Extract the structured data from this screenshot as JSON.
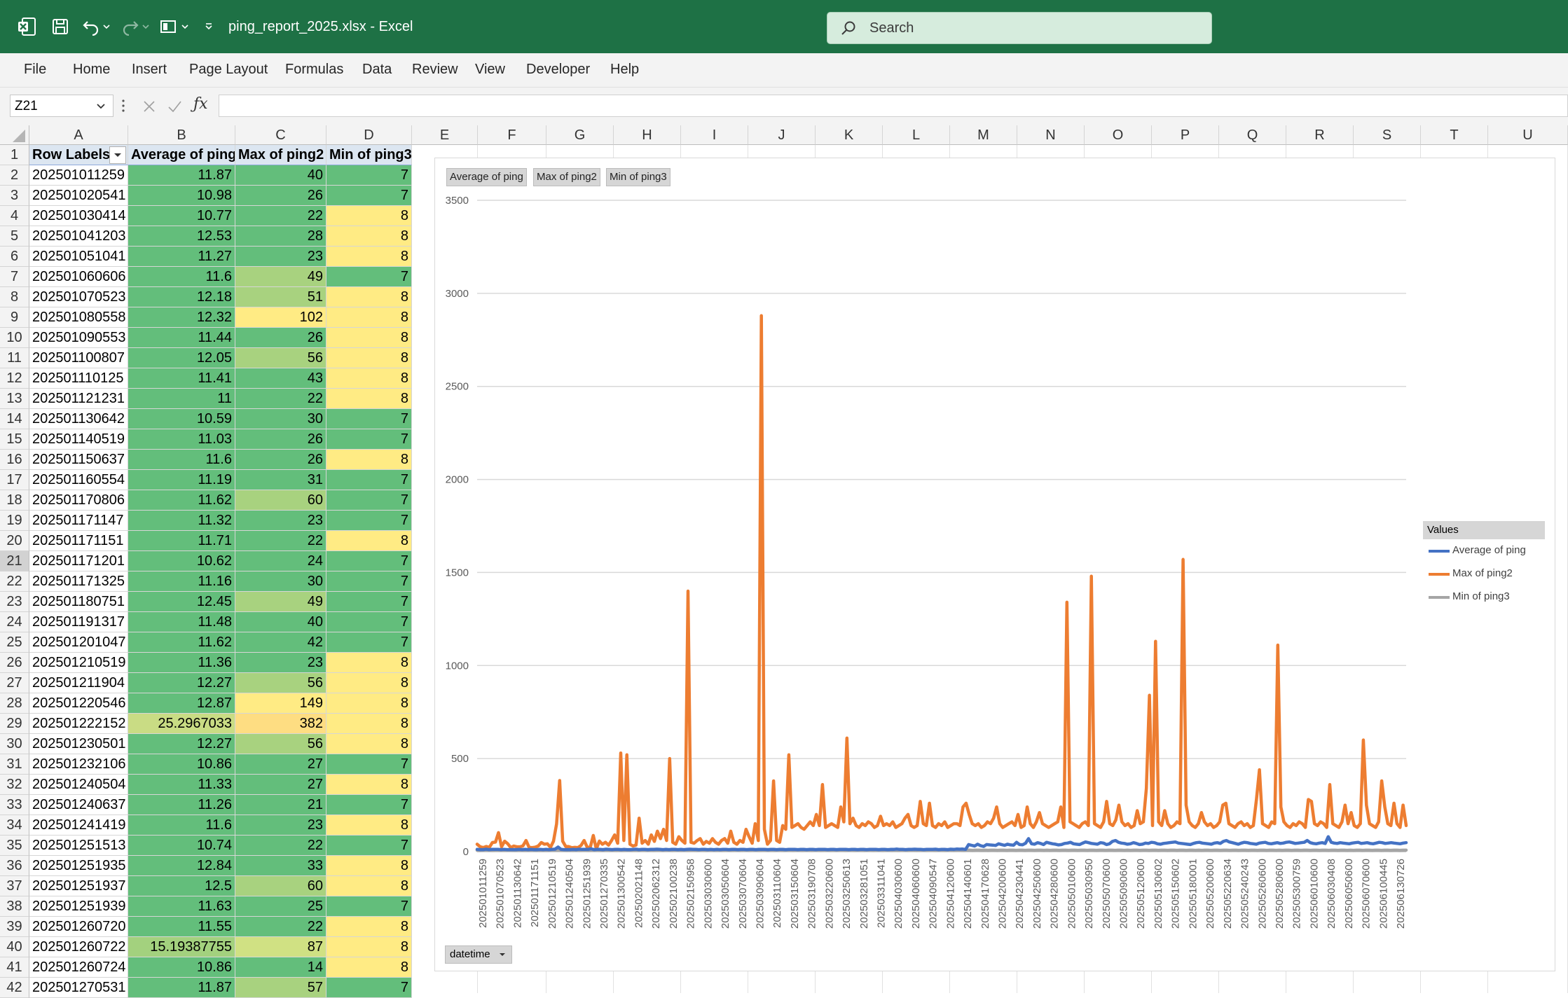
{
  "titlebar": {
    "title": "ping_report_2025.xlsx  -  Excel",
    "search_placeholder": "Search",
    "accent": "#1e7145"
  },
  "menu": [
    "File",
    "Home",
    "Insert",
    "Page Layout",
    "Formulas",
    "Data",
    "Review",
    "View",
    "Developer",
    "Help"
  ],
  "formula_bar": {
    "name_box": "Z21",
    "formula": ""
  },
  "columns": [
    "A",
    "B",
    "C",
    "D",
    "E",
    "F",
    "G",
    "H",
    "I",
    "J",
    "K",
    "L",
    "M",
    "N",
    "O",
    "P",
    "Q",
    "R",
    "S",
    "T",
    "U"
  ],
  "pivot": {
    "headers": [
      "Row Labels",
      "Average of ping",
      "Max of ping2",
      "Min of ping3"
    ],
    "rows": [
      [
        "202501011259",
        "11.87",
        "40",
        "7"
      ],
      [
        "202501020541",
        "10.98",
        "26",
        "7"
      ],
      [
        "202501030414",
        "10.77",
        "22",
        "8"
      ],
      [
        "202501041203",
        "12.53",
        "28",
        "8"
      ],
      [
        "202501051041",
        "11.27",
        "23",
        "8"
      ],
      [
        "202501060606",
        "11.6",
        "49",
        "7"
      ],
      [
        "202501070523",
        "12.18",
        "51",
        "8"
      ],
      [
        "202501080558",
        "12.32",
        "102",
        "8"
      ],
      [
        "202501090553",
        "11.44",
        "26",
        "8"
      ],
      [
        "202501100807",
        "12.05",
        "56",
        "8"
      ],
      [
        "202501110125",
        "11.41",
        "43",
        "8"
      ],
      [
        "202501121231",
        "11",
        "22",
        "8"
      ],
      [
        "202501130642",
        "10.59",
        "30",
        "7"
      ],
      [
        "202501140519",
        "11.03",
        "26",
        "7"
      ],
      [
        "202501150637",
        "11.6",
        "26",
        "8"
      ],
      [
        "202501160554",
        "11.19",
        "31",
        "7"
      ],
      [
        "202501170806",
        "11.62",
        "60",
        "7"
      ],
      [
        "202501171147",
        "11.32",
        "23",
        "7"
      ],
      [
        "202501171151",
        "11.71",
        "22",
        "8"
      ],
      [
        "202501171201",
        "10.62",
        "24",
        "7"
      ],
      [
        "202501171325",
        "11.16",
        "30",
        "7"
      ],
      [
        "202501180751",
        "12.45",
        "49",
        "7"
      ],
      [
        "202501191317",
        "11.48",
        "40",
        "7"
      ],
      [
        "202501201047",
        "11.62",
        "42",
        "7"
      ],
      [
        "202501210519",
        "11.36",
        "23",
        "8"
      ],
      [
        "202501211904",
        "12.27",
        "56",
        "8"
      ],
      [
        "202501220546",
        "12.87",
        "149",
        "8"
      ],
      [
        "202501222152",
        "25.2967033",
        "382",
        "8"
      ],
      [
        "202501230501",
        "12.27",
        "56",
        "8"
      ],
      [
        "202501232106",
        "10.86",
        "27",
        "7"
      ],
      [
        "202501240504",
        "11.33",
        "27",
        "8"
      ],
      [
        "202501240637",
        "11.26",
        "21",
        "7"
      ],
      [
        "202501241419",
        "11.6",
        "23",
        "8"
      ],
      [
        "202501251513",
        "10.74",
        "22",
        "7"
      ],
      [
        "202501251935",
        "12.84",
        "33",
        "8"
      ],
      [
        "202501251937",
        "12.5",
        "60",
        "8"
      ],
      [
        "202501251939",
        "11.63",
        "25",
        "7"
      ],
      [
        "202501260720",
        "11.55",
        "22",
        "8"
      ],
      [
        "202501260722",
        "15.19387755",
        "87",
        "8"
      ],
      [
        "202501260724",
        "10.86",
        "14",
        "8"
      ],
      [
        "202501270531",
        "11.87",
        "57",
        "7"
      ]
    ]
  },
  "colors": {
    "good": "#63be7b",
    "mid": "#c5dc80",
    "warn": "#ffeb84",
    "avg_line": "#4472c4",
    "max_line": "#ed7d31",
    "min_line": "#a5a5a5"
  },
  "chart_data": {
    "type": "line",
    "field_buttons": [
      "Average of ping",
      "Max of ping2",
      "Min of ping3"
    ],
    "axis_field_button": "datetime",
    "legend_title": "Values",
    "legend_position": "right",
    "grid": true,
    "ylim": [
      0,
      3500
    ],
    "y_ticks": [
      0,
      500,
      1000,
      1500,
      2000,
      2500,
      3000,
      3500
    ],
    "x_tick_labels": [
      "202501011259",
      "202501070523",
      "202501130642",
      "202501171151",
      "202501210519",
      "202501240504",
      "202501251939",
      "202501270335",
      "202501300542",
      "202502021148",
      "202502062312",
      "202502100238",
      "202502150958",
      "202503030600",
      "202503050604",
      "202503070604",
      "202503090604",
      "202503110604",
      "202503150604",
      "202503190708",
      "202503220600",
      "202503250613",
      "202503281051",
      "202503311041",
      "202504030600",
      "202504060600",
      "202504090547",
      "202504120600",
      "202504140601",
      "202504170628",
      "202504200600",
      "202504230441",
      "202504250600",
      "202504280600",
      "202505010600",
      "202505030950",
      "202505070600",
      "202505090600",
      "202505120600",
      "202505130602",
      "202505150602",
      "202505180001",
      "202505200600",
      "202505220634",
      "202505240243",
      "202505260600",
      "202505280600",
      "202505300759",
      "202506010600",
      "202506030408",
      "202506050600",
      "202506070600",
      "202506100445",
      "202506130726"
    ],
    "series": [
      {
        "name": "Average of ping",
        "values": [
          12,
          11,
          11,
          13,
          11,
          12,
          12,
          12,
          11,
          12,
          11,
          11,
          11,
          11,
          12,
          11,
          12,
          11,
          12,
          11,
          11,
          12,
          11,
          12,
          11,
          12,
          13,
          25,
          12,
          11,
          11,
          11,
          12,
          11,
          13,
          12,
          12,
          12,
          15,
          11,
          12,
          12,
          11,
          13,
          12,
          11,
          12,
          12,
          11,
          12,
          11,
          11,
          12,
          13,
          11,
          12,
          12,
          11,
          12,
          12,
          13,
          12,
          11,
          12,
          11,
          12,
          12,
          11,
          12,
          11,
          12,
          13,
          12,
          12,
          11,
          12,
          12,
          11,
          12,
          11,
          12,
          11,
          12,
          12,
          11,
          12,
          12,
          11,
          12,
          12,
          11,
          12,
          12,
          11,
          12,
          12,
          12,
          11,
          12,
          12,
          11,
          12,
          12,
          11,
          12,
          12,
          12,
          11,
          12,
          12,
          11,
          12,
          12,
          11,
          12,
          12,
          12,
          11,
          12,
          12,
          11,
          12,
          12,
          12,
          11,
          12,
          12,
          11,
          12,
          12,
          11,
          12,
          12,
          12,
          11,
          12,
          12,
          11,
          12,
          12,
          14,
          12,
          12,
          11,
          12,
          12,
          13,
          12,
          12,
          11,
          12,
          12,
          12,
          13,
          11,
          12,
          12,
          11,
          13,
          12,
          14,
          13,
          14,
          12,
          38,
          34,
          30,
          40,
          32,
          28,
          38,
          36,
          35,
          33,
          42,
          38,
          34,
          40,
          36,
          35,
          50,
          38,
          37,
          45,
          70,
          42,
          40,
          48,
          44,
          38,
          50,
          46,
          42,
          40,
          36,
          38,
          44,
          46,
          50,
          42,
          40,
          38,
          45,
          52,
          48,
          44,
          42,
          40,
          48,
          46,
          38,
          42,
          55,
          60,
          50,
          46,
          44,
          40,
          42,
          48,
          44,
          38,
          40,
          46,
          44,
          50,
          48,
          42,
          40,
          44,
          46,
          48,
          50,
          52,
          46,
          44,
          42,
          40,
          38,
          44,
          48,
          50,
          46,
          44,
          42,
          40,
          46,
          48,
          44,
          55,
          60,
          52,
          48,
          44,
          40,
          46,
          50,
          48,
          44,
          42,
          40,
          46,
          48,
          50,
          44,
          42,
          45,
          48,
          44,
          46,
          50,
          52,
          48,
          44,
          46,
          48,
          50,
          60,
          48,
          44,
          42,
          46,
          48,
          44,
          80,
          50,
          46,
          44,
          48,
          46,
          44,
          42,
          46,
          48,
          50,
          44,
          46,
          48,
          44,
          42,
          46,
          50,
          48,
          44,
          46,
          48,
          46,
          44,
          42,
          46,
          48
        ]
      },
      {
        "name": "Max of ping2",
        "values": [
          40,
          26,
          22,
          28,
          23,
          49,
          51,
          102,
          26,
          56,
          43,
          22,
          30,
          26,
          26,
          31,
          60,
          23,
          22,
          24,
          30,
          49,
          40,
          42,
          23,
          56,
          149,
          382,
          56,
          27,
          27,
          21,
          23,
          22,
          33,
          60,
          25,
          22,
          87,
          14,
          57,
          40,
          50,
          35,
          60,
          90,
          45,
          530,
          60,
          520,
          40,
          30,
          35,
          180,
          45,
          60,
          40,
          90,
          55,
          110,
          70,
          120,
          60,
          500,
          50,
          40,
          80,
          60,
          45,
          1400,
          50,
          45,
          60,
          70,
          40,
          55,
          45,
          70,
          50,
          40,
          60,
          70,
          45,
          110,
          50,
          40,
          60,
          50,
          120,
          80,
          45,
          150,
          60,
          2880,
          120,
          40,
          60,
          380,
          60,
          50,
          140,
          120,
          520,
          130,
          140,
          150,
          130,
          120,
          140,
          160,
          140,
          200,
          140,
          360,
          130,
          140,
          150,
          140,
          130,
          240,
          160,
          610,
          150,
          180,
          140,
          130,
          150,
          140,
          160,
          150,
          130,
          140,
          190,
          140,
          150,
          140,
          160,
          130,
          140,
          150,
          180,
          200,
          140,
          130,
          140,
          270,
          150,
          140,
          260,
          140,
          130,
          150,
          140,
          160,
          130,
          140,
          150,
          150,
          140,
          240,
          260,
          200,
          150,
          140,
          150,
          130,
          140,
          160,
          150,
          180,
          240,
          150,
          130,
          140,
          150,
          160,
          140,
          200,
          130,
          140,
          240,
          150,
          130,
          160,
          210,
          150,
          140,
          130,
          140,
          150,
          160,
          240,
          130,
          1340,
          160,
          150,
          140,
          130,
          150,
          160,
          140,
          1480,
          150,
          140,
          130,
          160,
          270,
          150,
          140,
          170,
          250,
          160,
          140,
          150,
          130,
          140,
          220,
          150,
          160,
          340,
          840,
          140,
          1130,
          160,
          140,
          220,
          150,
          130,
          140,
          160,
          150,
          1570,
          250,
          160,
          140,
          130,
          150,
          210,
          160,
          140,
          150,
          130,
          140,
          160,
          250,
          260,
          150,
          140,
          130,
          150,
          160,
          140,
          150,
          130,
          140,
          280,
          440,
          150,
          140,
          130,
          160,
          150,
          1110,
          240,
          160,
          140,
          130,
          150,
          140,
          160,
          150,
          130,
          280,
          270,
          150,
          140,
          160,
          150,
          130,
          360,
          150,
          140,
          130,
          160,
          250,
          150,
          210,
          140,
          130,
          150,
          600,
          250,
          150,
          140,
          130,
          160,
          380,
          240,
          150,
          140,
          260,
          150,
          130,
          250,
          140
        ]
      },
      {
        "name": "Min of ping3",
        "values": [
          7,
          7,
          8,
          8,
          8,
          7,
          8,
          8,
          8,
          8,
          8,
          8,
          7,
          7,
          8,
          7,
          7,
          7,
          8,
          7,
          7,
          7,
          7,
          7,
          8,
          8,
          8,
          8,
          8,
          7,
          8,
          7,
          8,
          7,
          8,
          8,
          7,
          8,
          8,
          8,
          7,
          7,
          8,
          7,
          8,
          7,
          8,
          7,
          8,
          8,
          7,
          8,
          7,
          8,
          8,
          7,
          8,
          7,
          8,
          8,
          7,
          8,
          8,
          7,
          8,
          8,
          7,
          8,
          7,
          8,
          8,
          7,
          8,
          8,
          7,
          8,
          8,
          7,
          8,
          7,
          8,
          8,
          7,
          8,
          8,
          7,
          8,
          8,
          7,
          8,
          8,
          7,
          8,
          8,
          7,
          8,
          7,
          8,
          8,
          7,
          8,
          8,
          7,
          8,
          8,
          7,
          8,
          8,
          7,
          8,
          8,
          7,
          8,
          8,
          7,
          8,
          7,
          8,
          8,
          7,
          8,
          8,
          7,
          8,
          8,
          7,
          8,
          8,
          7,
          8,
          8,
          7,
          8,
          8,
          7,
          8,
          7,
          8,
          8,
          7,
          8,
          8,
          7,
          8,
          8,
          7,
          8,
          8,
          7,
          8,
          8,
          7,
          8,
          8,
          7,
          8,
          8,
          7,
          8,
          8,
          7,
          8,
          8,
          7,
          8,
          7,
          8,
          8,
          7,
          8,
          8,
          7,
          8,
          8,
          7,
          8,
          8,
          7,
          8,
          8,
          7,
          8,
          8,
          7,
          8,
          7,
          8,
          8,
          7,
          8,
          8,
          7,
          8,
          8,
          7,
          8,
          8,
          7,
          8,
          8,
          7,
          8,
          8,
          7,
          8,
          8,
          7,
          8,
          8,
          7,
          8,
          7,
          8,
          8,
          7,
          8,
          8,
          7,
          8,
          8,
          7,
          8,
          8,
          7,
          8,
          8,
          7,
          8,
          8,
          7,
          8,
          8,
          7,
          8,
          7,
          8,
          8,
          7,
          8,
          8,
          7,
          8,
          8,
          7,
          8,
          8,
          7,
          8,
          8,
          7,
          8,
          8,
          7,
          8,
          8,
          7,
          8,
          8,
          7,
          8,
          7,
          8,
          8,
          7,
          8,
          8,
          7,
          8,
          8,
          7,
          8,
          8,
          7,
          8,
          8,
          7,
          8,
          8,
          7,
          8,
          8,
          7,
          8,
          7,
          8,
          8,
          7,
          8,
          8,
          7,
          8,
          8,
          7,
          8,
          8,
          7,
          8,
          8,
          7,
          8,
          8
        ]
      }
    ]
  }
}
